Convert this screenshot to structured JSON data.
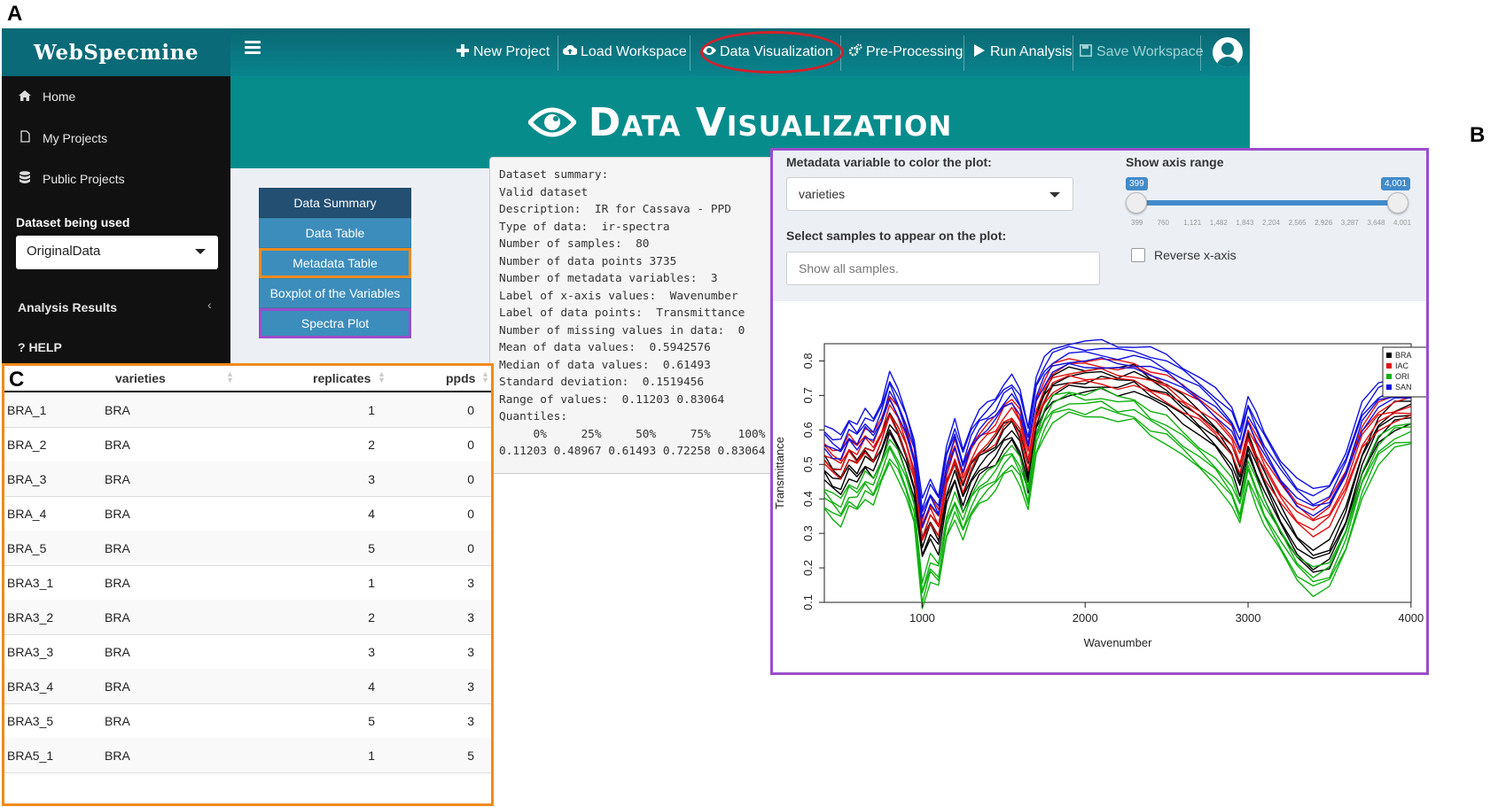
{
  "panel_letters": {
    "a": "A",
    "b": "B",
    "c": "C"
  },
  "app": {
    "brand": "WebSpecmine",
    "nav": [
      {
        "label": "New Project",
        "icon": "plus-icon"
      },
      {
        "label": "Load Workspace",
        "icon": "cloud-upload-icon"
      },
      {
        "label": "Data Visualization",
        "icon": "eye-icon"
      },
      {
        "label": "Pre-Processing",
        "icon": "cogs-icon"
      },
      {
        "label": "Run Analysis",
        "icon": "play-icon"
      },
      {
        "label": "Save Workspace",
        "icon": "save-icon"
      }
    ],
    "sidebar": {
      "items": [
        {
          "label": "Home",
          "icon": "home-icon"
        },
        {
          "label": "My Projects",
          "icon": "file-icon"
        },
        {
          "label": "Public Projects",
          "icon": "database-icon"
        }
      ],
      "dataset_label": "Dataset being used",
      "dataset_value": "OriginalData",
      "analysis_label": "Analysis Results",
      "help_label": "? HELP"
    },
    "banner_title": "Data Visualization",
    "viz_buttons": [
      "Data Summary",
      "Data Table",
      "Metadata Table",
      "Boxplot of the Variables",
      "Spectra Plot"
    ],
    "summary_lines": [
      "Dataset summary:",
      "Valid dataset",
      "Description:  IR for Cassava - PPD",
      "Type of data:  ir-spectra",
      "Number of samples:  80",
      "Number of data points 3735",
      "Number of metadata variables:  3",
      "Label of x-axis values:  Wavenumber",
      "Label of data points:  Transmittance",
      "Number of missing values in data:  0",
      "Mean of data values:  0.5942576",
      "Median of data values:  0.61493",
      "Standard deviation:  0.1519456",
      "Range of values:  0.11203 0.83064",
      "Quantiles:",
      "     0%     25%     50%     75%    100%",
      "0.11203 0.48967 0.61493 0.72258 0.83064"
    ]
  },
  "metadata_table": {
    "headers": [
      "",
      "varieties",
      "replicates",
      "ppds"
    ],
    "rows": [
      [
        "BRA_1",
        "BRA",
        "1",
        "0"
      ],
      [
        "BRA_2",
        "BRA",
        "2",
        "0"
      ],
      [
        "BRA_3",
        "BRA",
        "3",
        "0"
      ],
      [
        "BRA_4",
        "BRA",
        "4",
        "0"
      ],
      [
        "BRA_5",
        "BRA",
        "5",
        "0"
      ],
      [
        "BRA3_1",
        "BRA",
        "1",
        "3"
      ],
      [
        "BRA3_2",
        "BRA",
        "2",
        "3"
      ],
      [
        "BRA3_3",
        "BRA",
        "3",
        "3"
      ],
      [
        "BRA3_4",
        "BRA",
        "4",
        "3"
      ],
      [
        "BRA3_5",
        "BRA",
        "5",
        "3"
      ],
      [
        "BRA5_1",
        "BRA",
        "1",
        "5"
      ]
    ]
  },
  "spectra_controls": {
    "metadata_label": "Metadata variable to color the plot:",
    "metadata_value": "varieties",
    "samples_label": "Select samples to appear on the plot:",
    "samples_placeholder": "Show all samples.",
    "range_label": "Show axis range",
    "range_min": "399",
    "range_max": "4,001",
    "ticks": [
      "399",
      "760",
      "1,121",
      "1,482",
      "1,843",
      "2,204",
      "2,565",
      "2,926",
      "3,287",
      "3,648",
      "4,001"
    ],
    "reverse_label": "Reverse x-axis"
  },
  "chart_data": {
    "type": "line",
    "xlabel": "Wavenumber",
    "ylabel": "Transmittance",
    "xlim": [
      399,
      4001
    ],
    "ylim": [
      0.1,
      0.85
    ],
    "xticks": [
      1000,
      2000,
      3000,
      4000
    ],
    "yticks": [
      0.1,
      0.2,
      0.3,
      0.4,
      0.5,
      0.6,
      0.7,
      0.8
    ],
    "legend_position": "top-right",
    "legend": [
      "BRA",
      "IAC",
      "ORI",
      "SAN"
    ],
    "colors": {
      "BRA": "#000000",
      "IAC": "#e01010",
      "ORI": "#10b010",
      "SAN": "#1010e0"
    },
    "series": [
      {
        "name": "BRA",
        "color": "#000000",
        "x": [
          400,
          450,
          500,
          550,
          600,
          650,
          700,
          750,
          800,
          850,
          900,
          950,
          1000,
          1050,
          1100,
          1150,
          1200,
          1250,
          1300,
          1350,
          1400,
          1450,
          1500,
          1550,
          1600,
          1650,
          1700,
          1750,
          1800,
          1900,
          2000,
          2100,
          2200,
          2300,
          2400,
          2500,
          2600,
          2700,
          2800,
          2900,
          2950,
          3000,
          3050,
          3100,
          3200,
          3300,
          3400,
          3500,
          3600,
          3700,
          3800,
          3900,
          4000
        ],
        "y": [
          0.49,
          0.46,
          0.45,
          0.5,
          0.48,
          0.52,
          0.5,
          0.55,
          0.62,
          0.58,
          0.52,
          0.44,
          0.26,
          0.32,
          0.28,
          0.42,
          0.48,
          0.4,
          0.46,
          0.5,
          0.52,
          0.54,
          0.58,
          0.6,
          0.56,
          0.46,
          0.62,
          0.68,
          0.72,
          0.74,
          0.74,
          0.75,
          0.74,
          0.75,
          0.72,
          0.7,
          0.66,
          0.62,
          0.58,
          0.52,
          0.45,
          0.56,
          0.5,
          0.44,
          0.34,
          0.26,
          0.22,
          0.24,
          0.34,
          0.5,
          0.6,
          0.64,
          0.65
        ]
      },
      {
        "name": "IAC",
        "color": "#e01010",
        "x": [
          400,
          450,
          500,
          550,
          600,
          650,
          700,
          750,
          800,
          850,
          900,
          950,
          1000,
          1050,
          1100,
          1150,
          1200,
          1250,
          1300,
          1350,
          1400,
          1450,
          1500,
          1550,
          1600,
          1650,
          1700,
          1750,
          1800,
          1900,
          2000,
          2100,
          2200,
          2300,
          2400,
          2500,
          2600,
          2700,
          2800,
          2900,
          2950,
          3000,
          3050,
          3100,
          3200,
          3300,
          3400,
          3500,
          3600,
          3700,
          3800,
          3900,
          4000
        ],
        "y": [
          0.53,
          0.51,
          0.5,
          0.55,
          0.53,
          0.57,
          0.55,
          0.6,
          0.67,
          0.63,
          0.57,
          0.49,
          0.31,
          0.37,
          0.33,
          0.47,
          0.54,
          0.46,
          0.52,
          0.56,
          0.58,
          0.6,
          0.64,
          0.66,
          0.62,
          0.52,
          0.66,
          0.71,
          0.75,
          0.77,
          0.77,
          0.77,
          0.76,
          0.76,
          0.74,
          0.72,
          0.69,
          0.66,
          0.62,
          0.57,
          0.51,
          0.6,
          0.55,
          0.5,
          0.42,
          0.36,
          0.33,
          0.36,
          0.45,
          0.58,
          0.64,
          0.66,
          0.67
        ]
      },
      {
        "name": "ORI",
        "color": "#10b010",
        "x": [
          400,
          450,
          500,
          550,
          600,
          650,
          700,
          750,
          800,
          850,
          900,
          950,
          1000,
          1050,
          1100,
          1150,
          1200,
          1250,
          1300,
          1350,
          1400,
          1450,
          1500,
          1550,
          1600,
          1650,
          1700,
          1750,
          1800,
          1900,
          2000,
          2100,
          2200,
          2300,
          2400,
          2500,
          2600,
          2700,
          2800,
          2900,
          2950,
          3000,
          3050,
          3100,
          3200,
          3300,
          3400,
          3500,
          3600,
          3700,
          3800,
          3900,
          4000
        ],
        "y": [
          0.4,
          0.38,
          0.36,
          0.41,
          0.4,
          0.44,
          0.42,
          0.48,
          0.54,
          0.5,
          0.44,
          0.36,
          0.12,
          0.2,
          0.18,
          0.32,
          0.38,
          0.32,
          0.38,
          0.42,
          0.44,
          0.46,
          0.5,
          0.52,
          0.48,
          0.4,
          0.56,
          0.62,
          0.66,
          0.68,
          0.67,
          0.68,
          0.66,
          0.66,
          0.62,
          0.6,
          0.56,
          0.52,
          0.48,
          0.42,
          0.36,
          0.48,
          0.42,
          0.36,
          0.28,
          0.2,
          0.16,
          0.18,
          0.28,
          0.44,
          0.54,
          0.58,
          0.59
        ]
      },
      {
        "name": "SAN",
        "color": "#1010e0",
        "x": [
          400,
          450,
          500,
          550,
          600,
          650,
          700,
          750,
          800,
          850,
          900,
          950,
          1000,
          1050,
          1100,
          1150,
          1200,
          1250,
          1300,
          1350,
          1400,
          1450,
          1500,
          1550,
          1600,
          1650,
          1700,
          1750,
          1800,
          1900,
          2000,
          2100,
          2200,
          2300,
          2400,
          2500,
          2600,
          2700,
          2800,
          2900,
          2950,
          3000,
          3050,
          3100,
          3200,
          3300,
          3400,
          3500,
          3600,
          3700,
          3800,
          3900,
          4000
        ],
        "y": [
          0.58,
          0.56,
          0.55,
          0.6,
          0.58,
          0.62,
          0.6,
          0.65,
          0.73,
          0.68,
          0.62,
          0.54,
          0.36,
          0.42,
          0.38,
          0.52,
          0.59,
          0.51,
          0.58,
          0.62,
          0.64,
          0.66,
          0.7,
          0.72,
          0.68,
          0.58,
          0.72,
          0.77,
          0.8,
          0.82,
          0.82,
          0.82,
          0.81,
          0.81,
          0.8,
          0.78,
          0.75,
          0.72,
          0.68,
          0.63,
          0.57,
          0.66,
          0.61,
          0.56,
          0.48,
          0.42,
          0.39,
          0.41,
          0.5,
          0.64,
          0.7,
          0.72,
          0.73
        ]
      }
    ]
  }
}
